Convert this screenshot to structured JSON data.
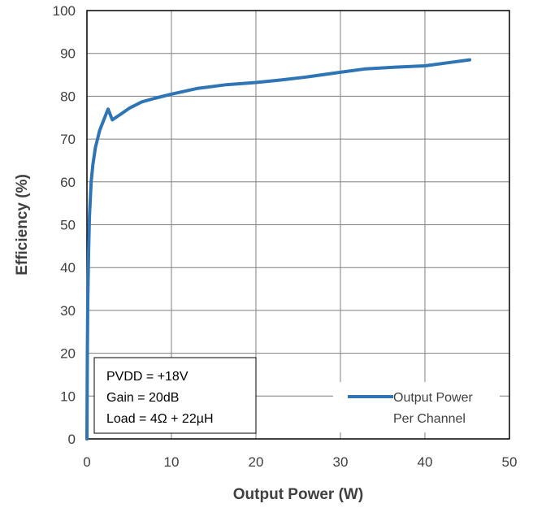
{
  "chart_data": {
    "type": "line",
    "title": "",
    "xlabel": "Output Power (W)",
    "ylabel": "Efficiency (%)",
    "xlim": [
      0,
      50
    ],
    "ylim": [
      0,
      100
    ],
    "xticks": [
      0,
      10,
      20,
      30,
      40,
      50
    ],
    "yticks": [
      0,
      10,
      20,
      30,
      40,
      50,
      60,
      70,
      80,
      90,
      100
    ],
    "grid": true,
    "legend_position": "bottom-right",
    "series": [
      {
        "name": "Output Power Per Channel",
        "name_lines": [
          "Output Power",
          "Per Channel"
        ],
        "color": "#2E75B6",
        "x": [
          0.0,
          0.05,
          0.1,
          0.2,
          0.3,
          0.5,
          0.7,
          1.0,
          1.5,
          2.0,
          2.5,
          3.0,
          4.0,
          5.0,
          6.5,
          8.0,
          10.0,
          13.0,
          16.5,
          20.0,
          23.0,
          26.0,
          30.0,
          33.0,
          36.5,
          40.0,
          43.0,
          45.3
        ],
        "y": [
          0,
          20,
          32,
          44,
          52,
          60,
          64,
          68,
          72,
          74.5,
          77,
          74.5,
          75.8,
          77.2,
          78.7,
          79.5,
          80.5,
          81.8,
          82.7,
          83.2,
          83.8,
          84.5,
          85.6,
          86.4,
          86.8,
          87.1,
          87.9,
          88.5
        ]
      }
    ],
    "annotations": [
      "PVDD = +18V",
      "Gain = 20dB",
      "Load = 4Ω + 22µH"
    ]
  }
}
